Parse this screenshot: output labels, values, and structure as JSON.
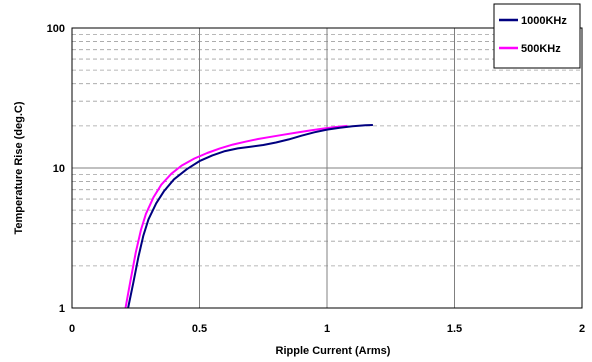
{
  "chart_data": {
    "type": "line",
    "xlabel": "Ripple Current (Arms)",
    "ylabel": "Temperature Rise (deg.C)",
    "xlim": [
      0,
      2
    ],
    "ylim": [
      1,
      100
    ],
    "yscale": "log",
    "x_ticks": [
      "0",
      "0.5",
      "1",
      "1.5",
      "2"
    ],
    "y_ticks": [
      "1",
      "10",
      "100"
    ],
    "grid": true,
    "legend_position": "top-right",
    "series": [
      {
        "name": "1000KHz",
        "color": "#000080",
        "x": [
          0.22,
          0.24,
          0.26,
          0.28,
          0.3,
          0.33,
          0.36,
          0.4,
          0.45,
          0.5,
          0.55,
          0.6,
          0.65,
          0.7,
          0.75,
          0.8,
          0.85,
          0.9,
          0.95,
          1.0,
          1.05,
          1.1,
          1.15,
          1.18
        ],
        "y": [
          1.0,
          1.5,
          2.3,
          3.3,
          4.3,
          5.6,
          6.8,
          8.3,
          9.8,
          11.2,
          12.3,
          13.2,
          13.8,
          14.2,
          14.6,
          15.2,
          16.0,
          17.0,
          18.0,
          18.8,
          19.4,
          19.9,
          20.2,
          20.3
        ]
      },
      {
        "name": "500KHz",
        "color": "#ff00ff",
        "x": [
          0.21,
          0.23,
          0.25,
          0.27,
          0.29,
          0.32,
          0.35,
          0.39,
          0.43,
          0.48,
          0.53,
          0.58,
          0.63,
          0.68,
          0.73,
          0.78,
          0.83,
          0.88,
          0.93,
          0.98,
          1.03,
          1.08
        ],
        "y": [
          1.0,
          1.6,
          2.5,
          3.6,
          4.7,
          6.2,
          7.6,
          9.1,
          10.4,
          11.7,
          12.8,
          13.8,
          14.7,
          15.4,
          16.1,
          16.7,
          17.3,
          17.9,
          18.5,
          19.1,
          19.6,
          20.0
        ]
      }
    ]
  }
}
